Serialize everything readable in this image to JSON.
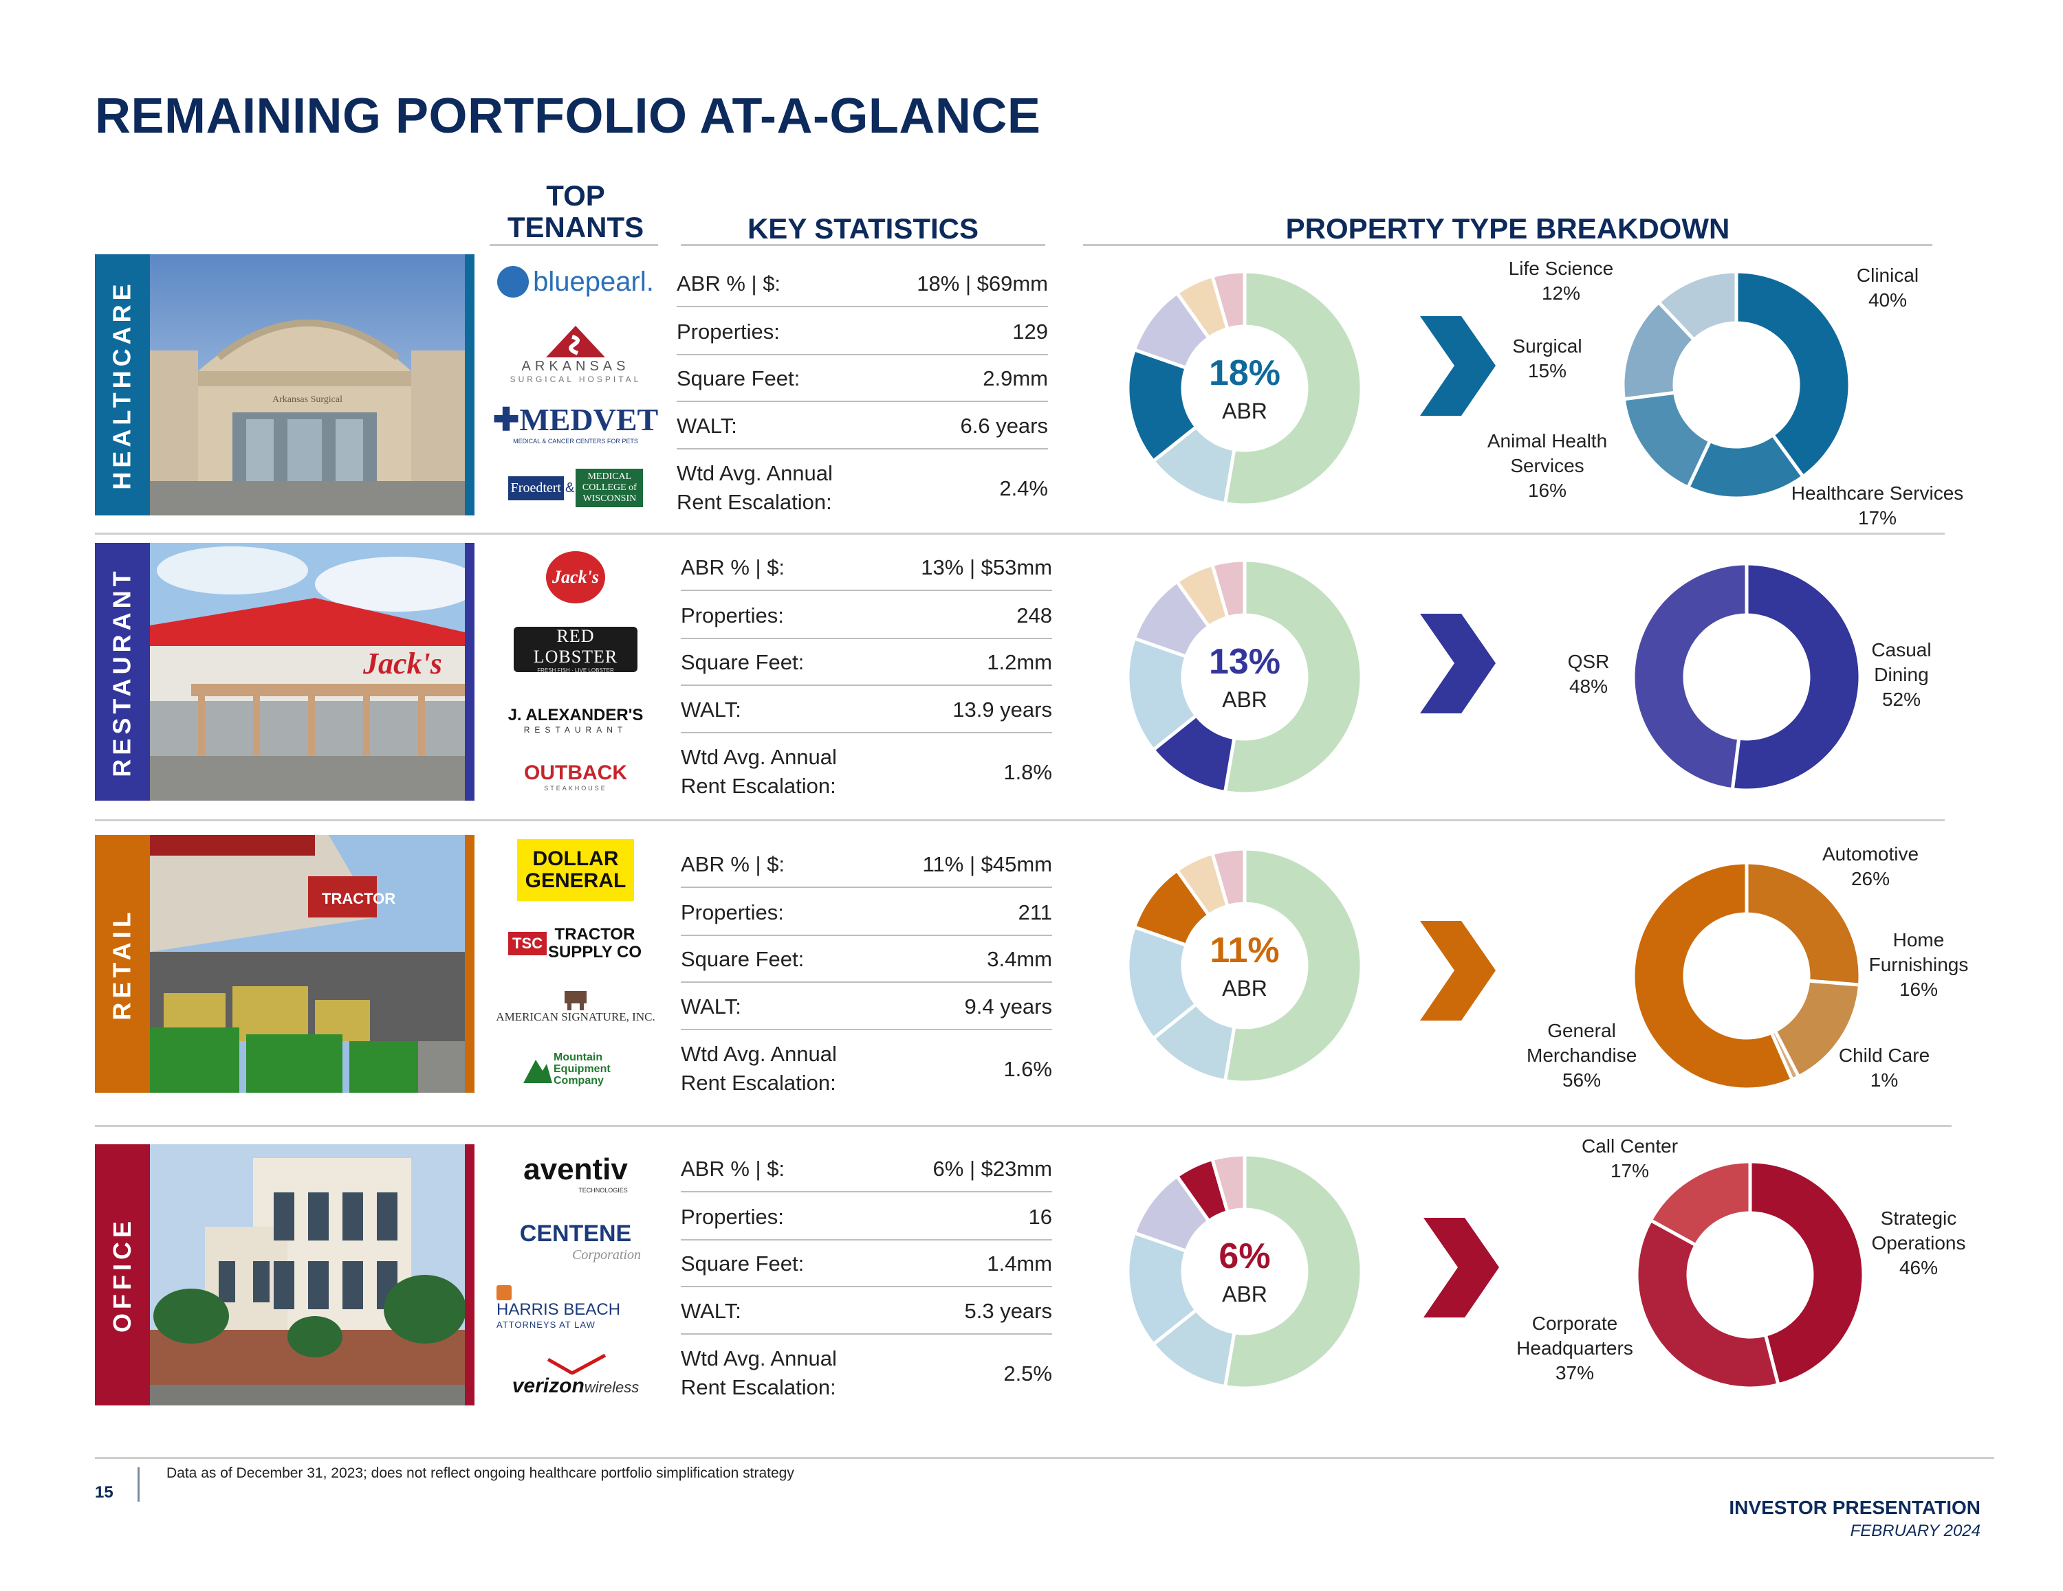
{
  "title": "REMAINING PORTFOLIO AT-A-GLANCE",
  "headers": {
    "top_tenants": "TOP TENANTS",
    "key_statistics": "KEY STATISTICS",
    "property_breakdown": "PROPERTY TYPE BREAKDOWN"
  },
  "stat_labels": {
    "abr": "ABR % | $:",
    "properties": "Properties:",
    "sqft": "Square Feet:",
    "walt": "WALT:",
    "escalation_1": "Wtd Avg. Annual",
    "escalation_2": "Rent Escalation:"
  },
  "abr_label": "ABR",
  "sectors": [
    {
      "name": "HEALTHCARE",
      "color": "#0f6a9c",
      "tenants": [
        "bluepearl.",
        "ARKANSAS",
        "SURGICAL HOSPITAL",
        "MEDVET",
        "MEDICAL & CANCER CENTERS FOR PETS",
        "Froedtert",
        "&",
        "MEDICAL COLLEGE of WISCONSIN"
      ],
      "stats": {
        "abr": "18% | $69mm",
        "properties": "129",
        "sqft": "2.9mm",
        "walt": "6.6 years",
        "escalation": "2.4%"
      },
      "abr_pct": "18%",
      "share": 18,
      "breakdown": [
        {
          "label": "Clinical",
          "pct": "40%",
          "value": 40,
          "color": "#0f6a9c"
        },
        {
          "label": "Healthcare Services",
          "pct": "17%",
          "value": 17,
          "color": "#2a7ca6"
        },
        {
          "label": "Animal Health Services",
          "pct": "16%",
          "value": 16,
          "color": "#4f8fb4"
        },
        {
          "label": "Surgical",
          "pct": "15%",
          "value": 15,
          "color": "#86acc7"
        },
        {
          "label": "Life Science",
          "pct": "12%",
          "value": 12,
          "color": "#b6ccda"
        }
      ]
    },
    {
      "name": "RESTAURANT",
      "color": "#33369a",
      "tenants": [
        "Jack's",
        "RED LOBSTER",
        "FRESH FISH · LIVE LOBSTER",
        "J. ALEXANDER'S",
        "RESTAURANT",
        "OUTBACK",
        "STEAKHOUSE"
      ],
      "stats": {
        "abr": "13% | $53mm",
        "properties": "248",
        "sqft": "1.2mm",
        "walt": "13.9 years",
        "escalation": "1.8%"
      },
      "abr_pct": "13%",
      "share": 13,
      "breakdown": [
        {
          "label": "Casual Dining",
          "pct": "52%",
          "value": 52,
          "color": "#33369a"
        },
        {
          "label": "QSR",
          "pct": "48%",
          "value": 48,
          "color": "#4a4aa6"
        }
      ]
    },
    {
      "name": "RETAIL",
      "color": "#cc6a0a",
      "tenants": [
        "DOLLAR GENERAL",
        "TRACTOR SUPPLY CO",
        "TSC",
        "AMERICAN SIGNATURE, INC.",
        "Mountain Equipment Company"
      ],
      "stats": {
        "abr": "11% | $45mm",
        "properties": "211",
        "sqft": "3.4mm",
        "walt": "9.4 years",
        "escalation": "1.6%"
      },
      "abr_pct": "11%",
      "share": 11,
      "breakdown": [
        {
          "label": "Automotive",
          "pct": "26%",
          "value": 26,
          "color": "#c9731b"
        },
        {
          "label": "Home Furnishings",
          "pct": "16%",
          "value": 16,
          "color": "#c98d4a"
        },
        {
          "label": "Child Care",
          "pct": "1%",
          "value": 1,
          "color": "#d9a87a"
        },
        {
          "label": "General Merchandise",
          "pct": "56%",
          "value": 56,
          "color": "#cc6a0a"
        }
      ]
    },
    {
      "name": "OFFICE",
      "color": "#a5102e",
      "tenants": [
        "aventiv",
        "TECHNOLOGIES",
        "CENTENE",
        "Corporation",
        "HARRIS BEACH",
        "ATTORNEYS AT LAW",
        "verizon",
        "wireless"
      ],
      "stats": {
        "abr": "6% | $23mm",
        "properties": "16",
        "sqft": "1.4mm",
        "walt": "5.3 years",
        "escalation": "2.5%"
      },
      "abr_pct": "6%",
      "share": 6,
      "breakdown": [
        {
          "label": "Strategic Operations",
          "pct": "46%",
          "value": 46,
          "color": "#a5102e"
        },
        {
          "label": "Corporate Headquarters",
          "pct": "37%",
          "value": 37,
          "color": "#b0223c"
        },
        {
          "label": "Call Center",
          "pct": "17%",
          "value": 17,
          "color": "#c9464f"
        }
      ]
    }
  ],
  "portfolio_other_colors": {
    "remaining": "#c2e0c0",
    "restaurant_share": "#bed8e4",
    "retail_share": "#c8c8e2",
    "office_share": "#f1d9b8",
    "other_share": "#e8c3cc"
  },
  "footer": {
    "page_number": "15",
    "note": "Data as of December 31, 2023; does not reflect ongoing healthcare portfolio simplification strategy",
    "presentation": "INVESTOR PRESENTATION",
    "date": "FEBRUARY 2024"
  }
}
